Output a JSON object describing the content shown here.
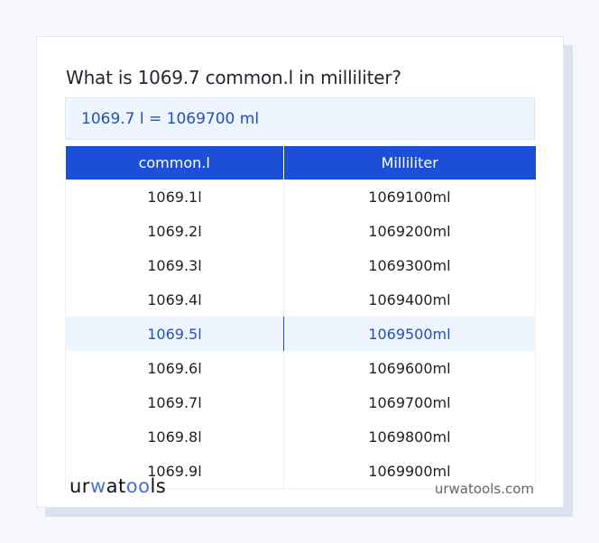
{
  "title": "What is 1069.7 common.l in milliliter?",
  "result": "1069.7 l = 1069700 ml",
  "table": {
    "headers": [
      "common.l",
      "Milliliter"
    ],
    "rows": [
      [
        "1069.1l",
        "1069100ml"
      ],
      [
        "1069.2l",
        "1069200ml"
      ],
      [
        "1069.3l",
        "1069300ml"
      ],
      [
        "1069.4l",
        "1069400ml"
      ],
      [
        "1069.5l",
        "1069500ml"
      ],
      [
        "1069.6l",
        "1069600ml"
      ],
      [
        "1069.7l",
        "1069700ml"
      ],
      [
        "1069.8l",
        "1069800ml"
      ],
      [
        "1069.9l",
        "1069900ml"
      ]
    ],
    "highlighted_row": 4
  },
  "footer": {
    "logo": "urwatools",
    "site": "urwatools.com"
  },
  "colors": {
    "accent": "#1c4fd8",
    "highlight_bg": "#eef5fe"
  }
}
